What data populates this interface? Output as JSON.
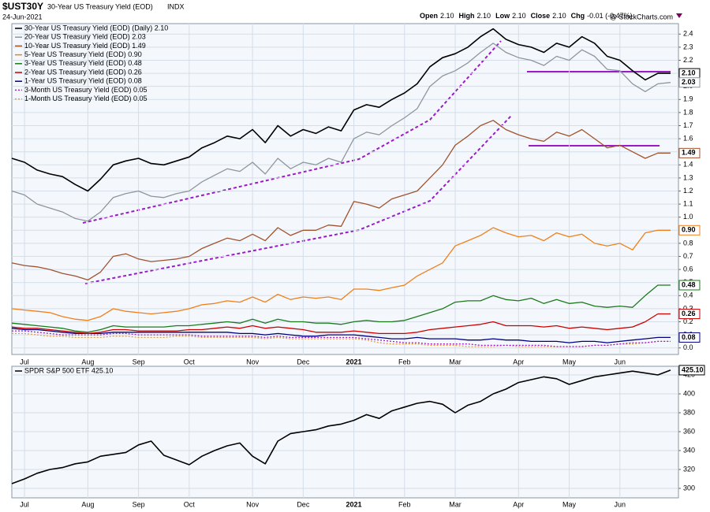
{
  "header": {
    "symbol": "$UST30Y",
    "name": "30-Year US Treasury Yield (EOD)",
    "exchange": "INDX",
    "date": "24-Jun-2021",
    "watermark": "@ StockCharts.com",
    "quote": [
      {
        "label": "Open",
        "value": "2.10"
      },
      {
        "label": "High",
        "value": "2.10"
      },
      {
        "label": "Low",
        "value": "2.10"
      },
      {
        "label": "Close",
        "value": "2.10"
      },
      {
        "label": "Chg",
        "value": "-0.01 (-0.47%)"
      }
    ]
  },
  "chart_data": [
    {
      "type": "line",
      "grid": true,
      "legend": "top-left",
      "categories": [
        null,
        "Jul",
        null,
        null,
        null,
        null,
        "Aug",
        null,
        null,
        null,
        "Sep",
        null,
        null,
        null,
        "Oct",
        null,
        null,
        null,
        null,
        "Nov",
        null,
        null,
        null,
        "Dec",
        null,
        null,
        null,
        "2021",
        null,
        null,
        null,
        "Feb",
        null,
        null,
        null,
        "Mar",
        null,
        null,
        null,
        null,
        "Apr",
        null,
        null,
        null,
        "May",
        null,
        null,
        null,
        "Jun",
        null,
        null,
        null,
        null
      ],
      "ylim": [
        -0.05,
        2.48
      ],
      "yticks": [
        {
          "value": 0,
          "label": "0.0"
        },
        0.1,
        0.2,
        0.3,
        0.4,
        0.5,
        0.6,
        0.7,
        0.8,
        0.9,
        {
          "value": 1,
          "label": "1.0"
        },
        1.1,
        1.2,
        1.3,
        1.4,
        1.5,
        1.6,
        1.7,
        1.8,
        1.9,
        {
          "value": 2,
          "label": "2.0"
        },
        2.1,
        2.2,
        2.3,
        2.4
      ],
      "series": [
        {
          "name": "30-Year US Treasury Yield (EOD) (Daily) 2.10",
          "color": "#000000",
          "last_label": "2.10",
          "values": [
            1.45,
            1.42,
            1.36,
            1.33,
            1.31,
            1.25,
            1.2,
            1.29,
            1.4,
            1.43,
            1.45,
            1.41,
            1.4,
            1.43,
            1.46,
            1.53,
            1.57,
            1.62,
            1.6,
            1.67,
            1.57,
            1.7,
            1.62,
            1.67,
            1.64,
            1.69,
            1.66,
            1.82,
            1.86,
            1.84,
            1.9,
            1.95,
            2.02,
            2.15,
            2.22,
            2.25,
            2.3,
            2.38,
            2.44,
            2.36,
            2.32,
            2.3,
            2.26,
            2.33,
            2.3,
            2.38,
            2.33,
            2.23,
            2.2,
            2.12,
            2.05,
            2.1,
            2.1
          ]
        },
        {
          "name": "20-Year US Treasury Yield (EOD) 2.03",
          "color": "#8c969e",
          "last_label": "2.03",
          "values": [
            1.2,
            1.17,
            1.1,
            1.07,
            1.04,
            0.99,
            0.97,
            1.04,
            1.15,
            1.18,
            1.2,
            1.16,
            1.15,
            1.18,
            1.2,
            1.27,
            1.32,
            1.37,
            1.35,
            1.42,
            1.33,
            1.45,
            1.37,
            1.42,
            1.4,
            1.45,
            1.42,
            1.6,
            1.65,
            1.63,
            1.7,
            1.76,
            1.83,
            2.0,
            2.08,
            2.12,
            2.18,
            2.26,
            2.33,
            2.26,
            2.22,
            2.2,
            2.16,
            2.23,
            2.2,
            2.28,
            2.23,
            2.13,
            2.12,
            2.02,
            1.96,
            2.02,
            2.03
          ]
        },
        {
          "name": "10-Year US Treasury Yield (EOD) 1.49",
          "color": "#a0522d",
          "last_label": "1.49",
          "values": [
            0.65,
            0.63,
            0.62,
            0.6,
            0.57,
            0.55,
            0.52,
            0.58,
            0.7,
            0.72,
            0.68,
            0.66,
            0.67,
            0.68,
            0.7,
            0.76,
            0.8,
            0.84,
            0.82,
            0.87,
            0.82,
            0.92,
            0.86,
            0.9,
            0.9,
            0.94,
            0.93,
            1.12,
            1.1,
            1.07,
            1.14,
            1.17,
            1.2,
            1.3,
            1.4,
            1.55,
            1.62,
            1.7,
            1.74,
            1.67,
            1.63,
            1.6,
            1.58,
            1.65,
            1.62,
            1.67,
            1.6,
            1.53,
            1.55,
            1.5,
            1.45,
            1.49,
            1.49
          ]
        },
        {
          "name": "5-Year US Treasury Yield (EOD) 0.90",
          "color": "#f07f1a",
          "last_label": "0.90",
          "values": [
            0.3,
            0.29,
            0.28,
            0.27,
            0.24,
            0.22,
            0.21,
            0.24,
            0.3,
            0.28,
            0.27,
            0.26,
            0.27,
            0.28,
            0.3,
            0.33,
            0.34,
            0.36,
            0.35,
            0.39,
            0.35,
            0.41,
            0.37,
            0.39,
            0.38,
            0.39,
            0.37,
            0.45,
            0.45,
            0.44,
            0.46,
            0.48,
            0.55,
            0.6,
            0.65,
            0.78,
            0.82,
            0.86,
            0.92,
            0.88,
            0.85,
            0.86,
            0.82,
            0.88,
            0.85,
            0.87,
            0.8,
            0.78,
            0.8,
            0.75,
            0.88,
            0.9,
            0.9
          ]
        },
        {
          "name": "3-Year US Treasury Yield (EOD) 0.48",
          "color": "#1a7a1a",
          "last_label": "0.48",
          "values": [
            0.19,
            0.18,
            0.17,
            0.16,
            0.15,
            0.13,
            0.12,
            0.14,
            0.17,
            0.16,
            0.16,
            0.16,
            0.16,
            0.17,
            0.17,
            0.18,
            0.19,
            0.2,
            0.19,
            0.22,
            0.19,
            0.22,
            0.2,
            0.2,
            0.19,
            0.19,
            0.18,
            0.2,
            0.21,
            0.2,
            0.2,
            0.21,
            0.24,
            0.27,
            0.3,
            0.35,
            0.36,
            0.36,
            0.4,
            0.37,
            0.36,
            0.38,
            0.34,
            0.37,
            0.34,
            0.35,
            0.32,
            0.31,
            0.32,
            0.31,
            0.4,
            0.48,
            0.48
          ]
        },
        {
          "name": "2-Year US Treasury Yield (EOD) 0.26",
          "color": "#cc0000",
          "last_label": "0.26",
          "values": [
            0.16,
            0.15,
            0.15,
            0.14,
            0.13,
            0.12,
            0.11,
            0.12,
            0.14,
            0.14,
            0.13,
            0.13,
            0.13,
            0.13,
            0.14,
            0.14,
            0.15,
            0.16,
            0.15,
            0.17,
            0.15,
            0.16,
            0.15,
            0.14,
            0.12,
            0.12,
            0.12,
            0.13,
            0.12,
            0.11,
            0.11,
            0.11,
            0.12,
            0.14,
            0.15,
            0.16,
            0.17,
            0.18,
            0.2,
            0.17,
            0.17,
            0.17,
            0.16,
            0.17,
            0.15,
            0.16,
            0.15,
            0.14,
            0.15,
            0.16,
            0.2,
            0.26,
            0.26
          ]
        },
        {
          "name": "1-Year US Treasury Yield (EOD) 0.08",
          "color": "#000080",
          "last_label": "0.08",
          "values": [
            0.15,
            0.14,
            0.14,
            0.13,
            0.12,
            0.11,
            0.11,
            0.11,
            0.12,
            0.12,
            0.12,
            0.12,
            0.12,
            0.12,
            0.12,
            0.12,
            0.12,
            0.12,
            0.11,
            0.11,
            0.1,
            0.11,
            0.1,
            0.09,
            0.09,
            0.1,
            0.1,
            0.1,
            0.09,
            0.08,
            0.07,
            0.07,
            0.08,
            0.07,
            0.07,
            0.07,
            0.06,
            0.06,
            0.07,
            0.06,
            0.06,
            0.05,
            0.05,
            0.05,
            0.04,
            0.05,
            0.05,
            0.04,
            0.05,
            0.06,
            0.07,
            0.08,
            0.08
          ]
        },
        {
          "name": "3-Month US Treasury Yield (EOD) 0.05",
          "color": "#a020c0",
          "dashed": true,
          "values": [
            0.13,
            0.13,
            0.12,
            0.11,
            0.1,
            0.1,
            0.1,
            0.1,
            0.11,
            0.11,
            0.1,
            0.1,
            0.1,
            0.1,
            0.1,
            0.09,
            0.09,
            0.09,
            0.09,
            0.09,
            0.08,
            0.09,
            0.08,
            0.08,
            0.08,
            0.08,
            0.08,
            0.08,
            0.07,
            0.06,
            0.05,
            0.04,
            0.04,
            0.03,
            0.03,
            0.03,
            0.03,
            0.02,
            0.02,
            0.02,
            0.02,
            0.02,
            0.02,
            0.01,
            0.01,
            0.01,
            0.02,
            0.02,
            0.03,
            0.04,
            0.04,
            0.05,
            0.05
          ]
        },
        {
          "name": "1-Month US Treasury Yield (EOD) 0.05",
          "color": "#e0a040",
          "dashed": true,
          "values": [
            0.11,
            0.11,
            0.1,
            0.09,
            0.09,
            0.08,
            0.08,
            0.08,
            0.09,
            0.09,
            0.08,
            0.08,
            0.08,
            0.09,
            0.09,
            0.08,
            0.08,
            0.08,
            0.08,
            0.08,
            0.07,
            0.08,
            0.07,
            0.07,
            0.07,
            0.07,
            0.07,
            0.07,
            0.06,
            0.04,
            0.03,
            0.03,
            0.03,
            0.02,
            0.02,
            0.02,
            0.01,
            0.01,
            0.01,
            0.02,
            0.01,
            0.01,
            0.01,
            0.01,
            0.01,
            0.01,
            0.02,
            0.02,
            0.03,
            0.03,
            0.04,
            0.05,
            0.05
          ]
        }
      ]
    },
    {
      "type": "line",
      "grid": true,
      "legend": "top-left",
      "categories": [
        null,
        "Jul",
        null,
        null,
        null,
        null,
        "Aug",
        null,
        null,
        null,
        "Sep",
        null,
        null,
        null,
        "Oct",
        null,
        null,
        null,
        null,
        "Nov",
        null,
        null,
        null,
        "Dec",
        null,
        null,
        null,
        "2021",
        null,
        null,
        null,
        "Feb",
        null,
        null,
        null,
        "Mar",
        null,
        null,
        null,
        null,
        "Apr",
        null,
        null,
        null,
        "May",
        null,
        null,
        null,
        "Jun",
        null,
        null,
        null,
        null
      ],
      "ylim": [
        290,
        429.2
      ],
      "yticks": [
        300,
        320,
        340,
        360,
        380,
        400,
        420
      ],
      "series": [
        {
          "name": "SPDR S&P 500 ETF 425.10",
          "color": "#000000",
          "last_label": "425.10",
          "values": [
            305,
            310,
            316,
            320,
            322,
            326,
            328,
            334,
            336,
            338,
            346,
            350,
            335,
            330,
            325,
            334,
            340,
            345,
            348,
            334,
            326,
            350,
            358,
            360,
            362,
            366,
            368,
            372,
            378,
            374,
            382,
            386,
            390,
            392,
            389,
            380,
            388,
            392,
            400,
            405,
            412,
            415,
            418,
            416,
            410,
            414,
            418,
            420,
            422,
            424,
            422,
            420,
            425.1
          ]
        }
      ]
    }
  ]
}
